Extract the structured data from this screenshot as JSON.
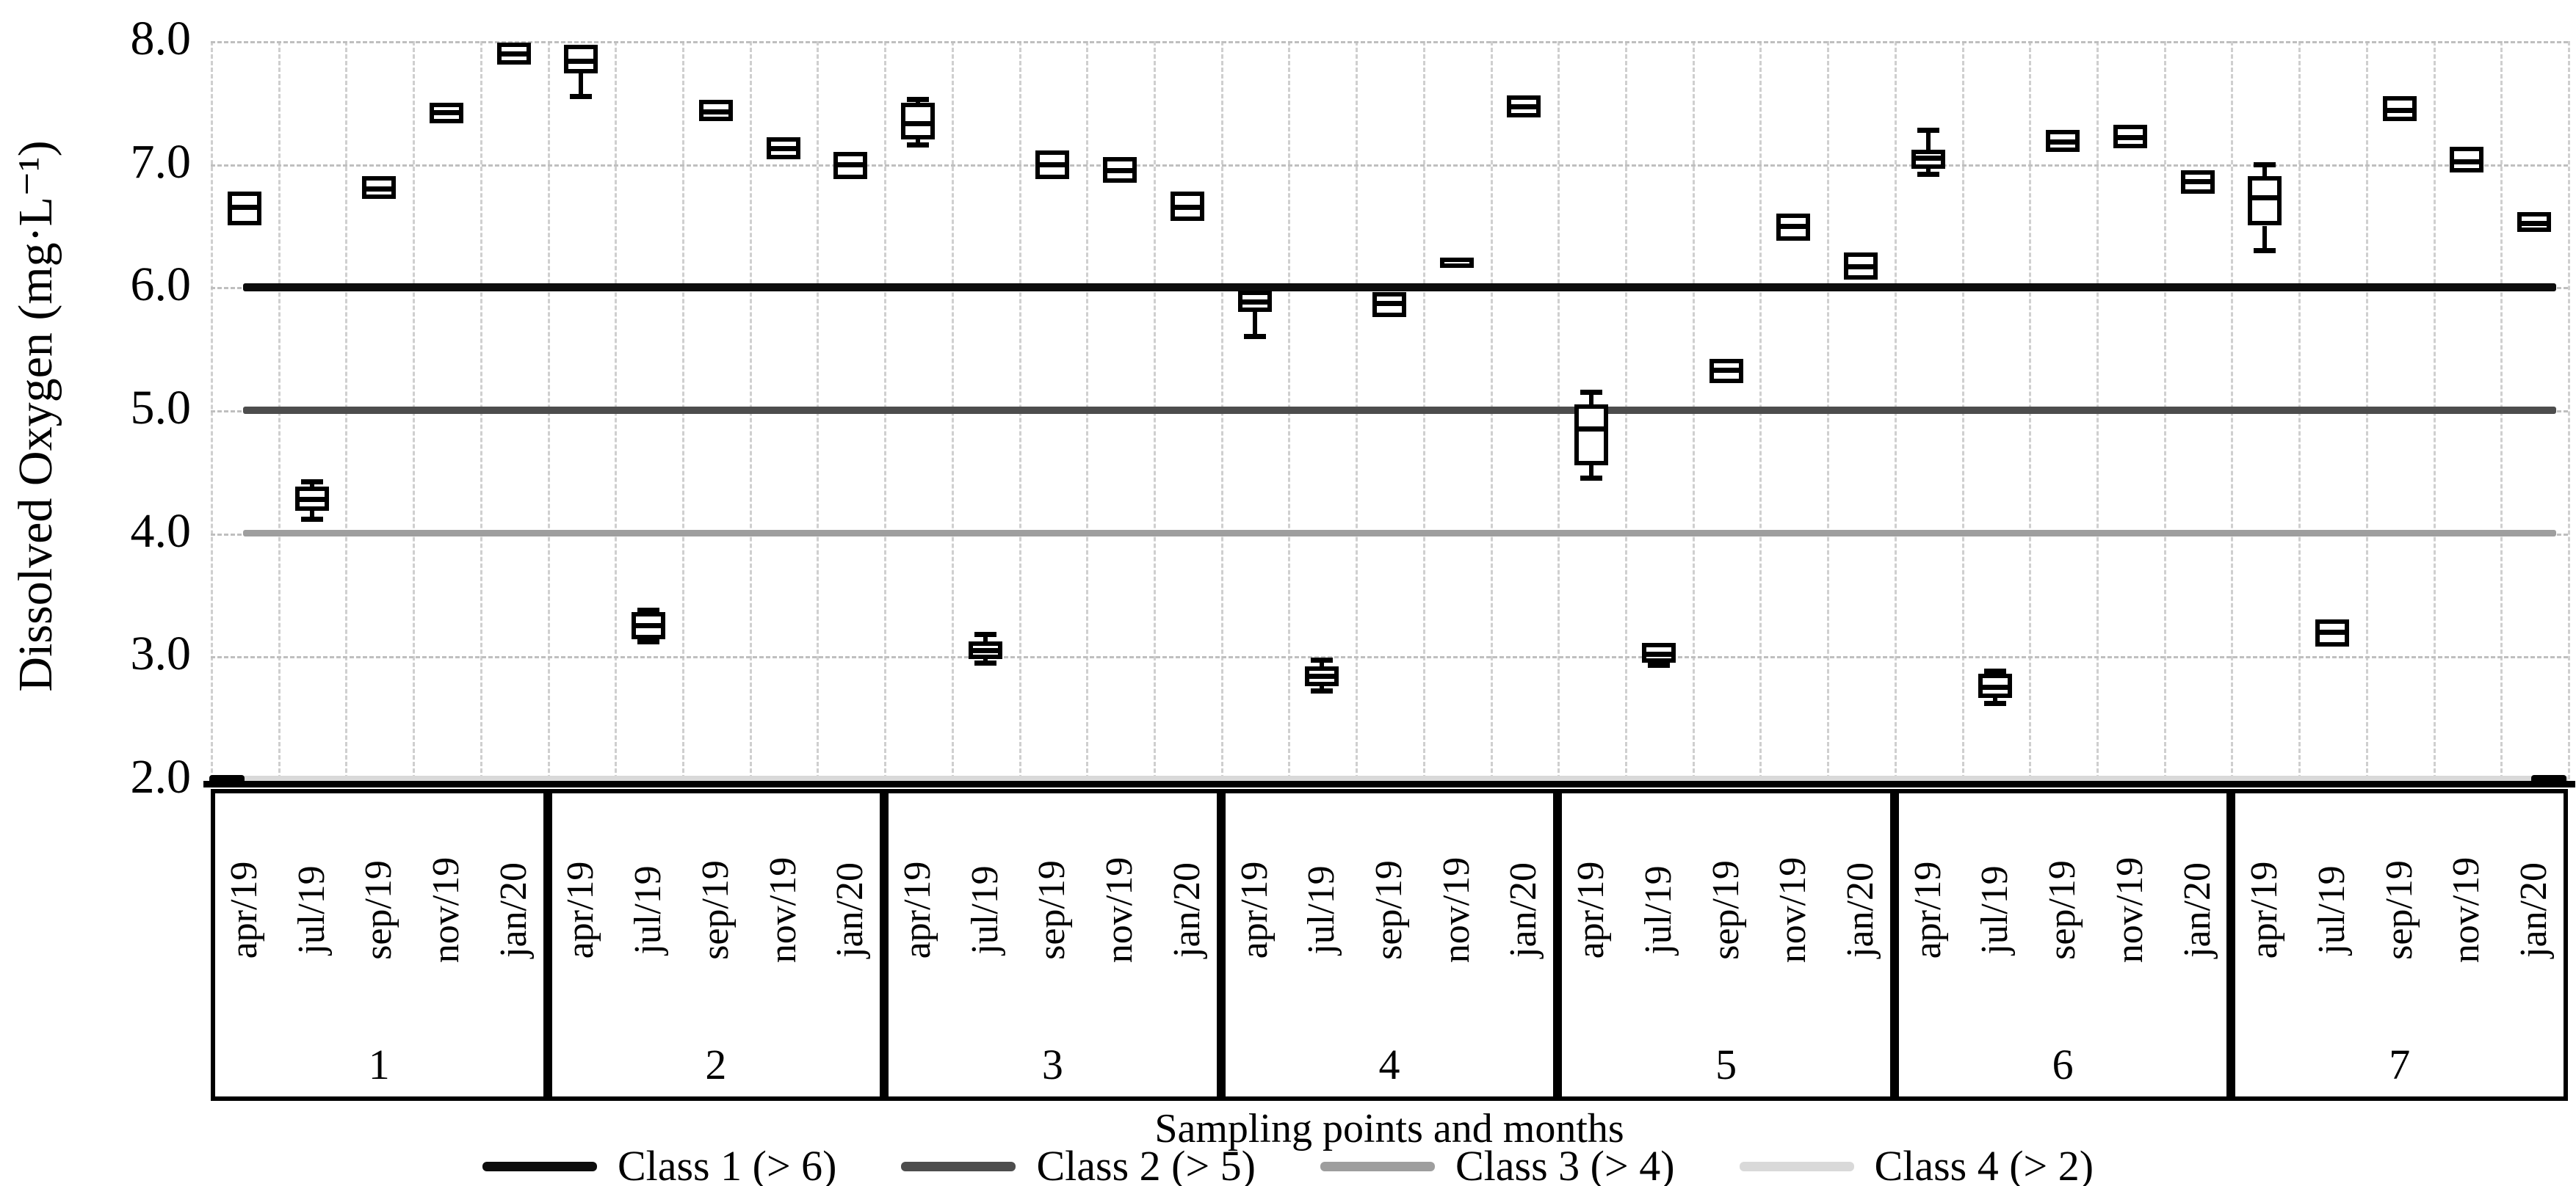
{
  "figure": {
    "y_axis_title": "Dissolved Oxygen (mg·L⁻¹)",
    "x_axis_title": "Sampling points and months"
  },
  "chart_data": {
    "type": "boxplot",
    "title": "",
    "xlabel": "Sampling points and months",
    "ylabel": "Dissolved Oxygen (mg·L⁻¹)",
    "ylim": [
      2.0,
      8.0
    ],
    "yticks": [
      "8.0",
      "7.0",
      "6.0",
      "5.0",
      "4.0",
      "3.0",
      "2.0"
    ],
    "ytick_values": [
      8.0,
      7.0,
      6.0,
      5.0,
      4.0,
      3.0,
      2.0
    ],
    "grid": "dashed light-gray, vertical per month column and horizontal per 1.0 unit",
    "months": [
      "apr/19",
      "jul/19",
      "sep/19",
      "nov/19",
      "jan/20"
    ],
    "box_value_format": "[whisker_low, q1, median, q3, whisker_high] in mg/L",
    "groups": [
      {
        "label": "1",
        "boxes": [
          [
            6.5,
            6.5,
            6.65,
            6.78,
            6.78
          ],
          [
            4.12,
            4.18,
            4.28,
            4.38,
            4.42
          ],
          [
            6.72,
            6.72,
            6.8,
            6.9,
            6.9
          ],
          [
            7.33,
            7.33,
            7.42,
            7.5,
            7.5
          ],
          [
            7.81,
            7.81,
            7.9,
            7.99,
            7.99
          ]
        ]
      },
      {
        "label": "2",
        "boxes": [
          [
            7.55,
            7.74,
            7.84,
            7.97,
            7.97
          ],
          [
            3.12,
            3.14,
            3.25,
            3.36,
            3.38
          ],
          [
            7.35,
            7.35,
            7.43,
            7.52,
            7.52
          ],
          [
            7.04,
            7.04,
            7.13,
            7.22,
            7.22
          ],
          [
            6.88,
            6.88,
            7.0,
            7.1,
            7.1
          ]
        ]
      },
      {
        "label": "3",
        "boxes": [
          [
            7.16,
            7.2,
            7.33,
            7.5,
            7.53
          ],
          [
            2.95,
            2.98,
            3.05,
            3.12,
            3.18
          ],
          [
            6.88,
            6.88,
            7.0,
            7.11,
            7.11
          ],
          [
            6.85,
            6.85,
            6.95,
            7.06,
            7.06
          ],
          [
            6.54,
            6.54,
            6.65,
            6.78,
            6.78
          ]
        ]
      },
      {
        "label": "4",
        "boxes": [
          [
            5.6,
            5.8,
            5.88,
            5.97,
            5.97
          ],
          [
            2.72,
            2.76,
            2.84,
            2.92,
            2.97
          ],
          [
            5.76,
            5.76,
            5.87,
            5.96,
            5.96
          ],
          [
            6.17,
            6.17,
            6.2,
            6.23,
            6.23
          ],
          [
            7.38,
            7.38,
            7.47,
            7.56,
            7.56
          ]
        ]
      },
      {
        "label": "5",
        "boxes": [
          [
            4.45,
            4.55,
            4.85,
            5.05,
            5.15
          ],
          [
            2.93,
            2.95,
            3.02,
            3.11,
            3.11
          ],
          [
            5.22,
            5.22,
            5.33,
            5.42,
            5.42
          ],
          [
            6.38,
            6.38,
            6.5,
            6.6,
            6.6
          ],
          [
            6.06,
            6.06,
            6.17,
            6.28,
            6.28
          ]
        ]
      },
      {
        "label": "6",
        "boxes": [
          [
            6.92,
            6.96,
            7.05,
            7.12,
            7.28
          ],
          [
            2.62,
            2.66,
            2.75,
            2.86,
            2.88
          ],
          [
            7.1,
            7.1,
            7.18,
            7.28,
            7.28
          ],
          [
            7.13,
            7.13,
            7.22,
            7.32,
            7.32
          ],
          [
            6.76,
            6.76,
            6.86,
            6.95,
            6.95
          ]
        ]
      },
      {
        "label": "7",
        "boxes": [
          [
            6.3,
            6.5,
            6.73,
            6.9,
            7.0
          ],
          [
            3.08,
            3.08,
            3.2,
            3.3,
            3.3
          ],
          [
            7.35,
            7.35,
            7.44,
            7.55,
            7.55
          ],
          [
            6.93,
            6.93,
            7.02,
            7.14,
            7.14
          ],
          [
            6.45,
            6.45,
            6.52,
            6.61,
            6.61
          ]
        ]
      }
    ],
    "reference_lines": [
      {
        "label": "Class 1 (> 6)",
        "value": 6.0,
        "color": "#0d0d0d",
        "thickness": 11
      },
      {
        "label": "Class 2 (> 5)",
        "value": 5.0,
        "color": "#4d4d4d",
        "thickness": 10
      },
      {
        "label": "Class 3 (> 4)",
        "value": 4.0,
        "color": "#9e9e9e",
        "thickness": 9
      },
      {
        "label": "Class 4 (> 2)",
        "value": 2.0,
        "color": "#d9d9d9",
        "thickness": 11
      }
    ],
    "edge_marks": [
      {
        "value": 2.0,
        "position": "left"
      },
      {
        "value": 2.0,
        "position": "right"
      }
    ],
    "legend_position": "bottom, horizontal row"
  }
}
